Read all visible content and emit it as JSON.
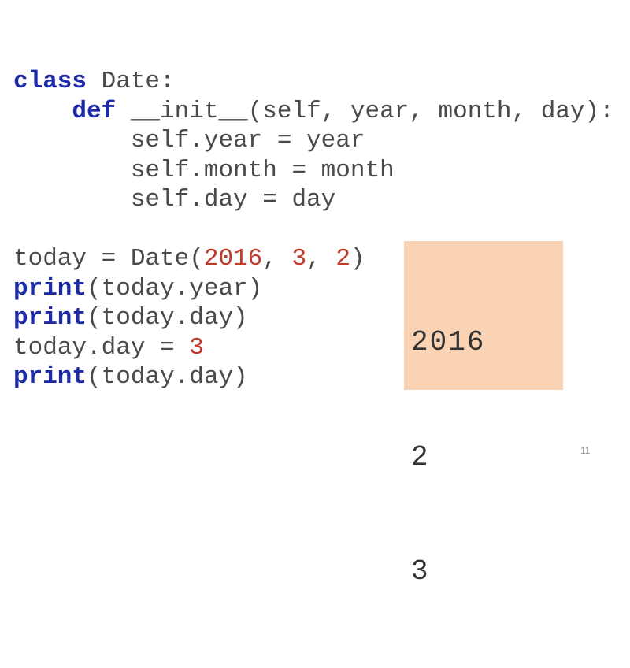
{
  "code": {
    "lines": [
      [
        {
          "t": "kw",
          "v": "class"
        },
        {
          "t": "tx",
          "v": " Date:"
        }
      ],
      [
        {
          "t": "tx",
          "v": "    "
        },
        {
          "t": "kw",
          "v": "def"
        },
        {
          "t": "tx",
          "v": " __init__(self, year, month, day):"
        }
      ],
      [
        {
          "t": "tx",
          "v": "        self.year = year"
        }
      ],
      [
        {
          "t": "tx",
          "v": "        self.month = month"
        }
      ],
      [
        {
          "t": "tx",
          "v": "        self.day = day"
        }
      ],
      [],
      [
        {
          "t": "tx",
          "v": "today = Date("
        },
        {
          "t": "num",
          "v": "2016"
        },
        {
          "t": "tx",
          "v": ", "
        },
        {
          "t": "num",
          "v": "3"
        },
        {
          "t": "tx",
          "v": ", "
        },
        {
          "t": "num",
          "v": "2"
        },
        {
          "t": "tx",
          "v": ")"
        }
      ],
      [
        {
          "t": "kw",
          "v": "print"
        },
        {
          "t": "tx",
          "v": "(today.year)"
        }
      ],
      [
        {
          "t": "kw",
          "v": "print"
        },
        {
          "t": "tx",
          "v": "(today.day)"
        }
      ],
      [
        {
          "t": "tx",
          "v": "today.day = "
        },
        {
          "t": "num",
          "v": "3"
        }
      ],
      [
        {
          "t": "kw",
          "v": "print"
        },
        {
          "t": "tx",
          "v": "(today.day)"
        }
      ]
    ]
  },
  "output": {
    "lines": [
      "2016",
      "2",
      "3"
    ],
    "background": "#f9d3b4"
  },
  "colors": {
    "keyword": "#1c2aa8",
    "number": "#c0392b",
    "text": "#4a4a4a"
  },
  "slide_number": "11"
}
